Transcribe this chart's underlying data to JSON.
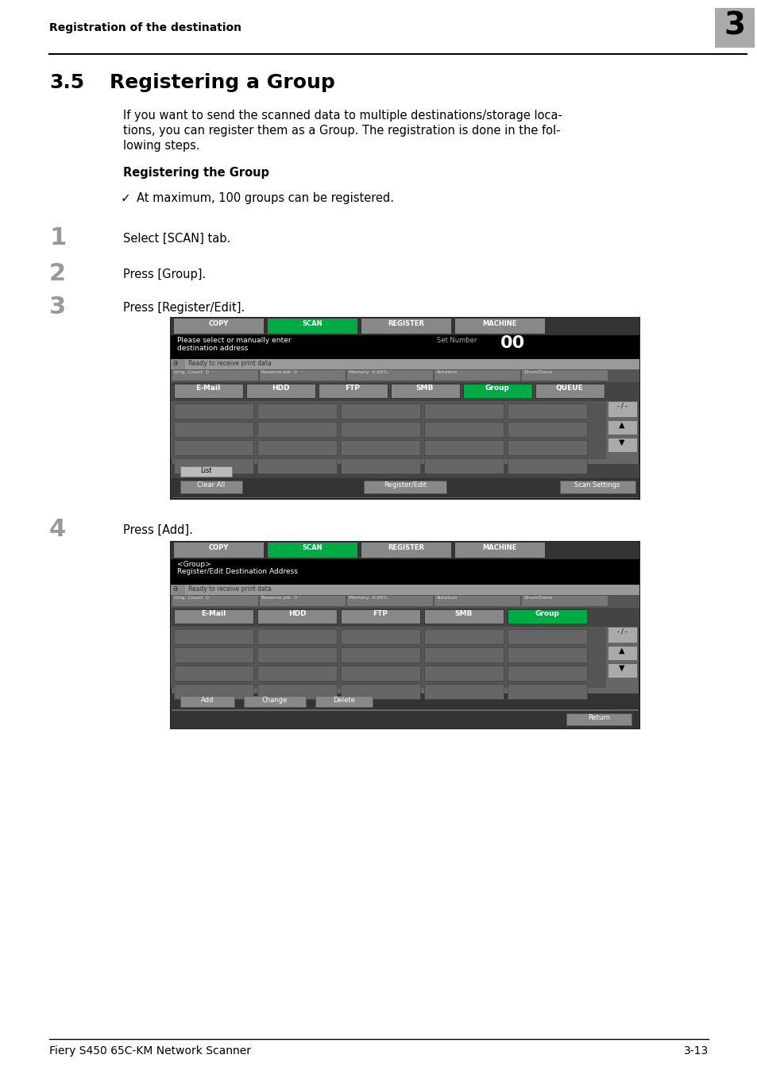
{
  "page_bg": "#ffffff",
  "header_text": "Registration of the destination",
  "header_chapter_num": "3",
  "header_chapter_bg": "#aaaaaa",
  "footer_text_left": "Fiery S450 65C-KM Network Scanner",
  "footer_text_right": "3-13",
  "section_num": "3.5",
  "section_title": "Registering a Group",
  "intro_line1": "If you want to send the scanned data to multiple destinations/storage loca-",
  "intro_line2": "tions, you can register them as a Group. The registration is done in the fol-",
  "intro_line3": "lowing steps.",
  "subheading": "Registering the Group",
  "checkmark_text": "At maximum, 100 groups can be registered.",
  "step1_num": "1",
  "step1_text": "Select [SCAN] tab.",
  "step2_num": "2",
  "step2_text": "Press [Group].",
  "step3_num": "3",
  "step3_text": "Press [Register/Edit].",
  "step4_num": "4",
  "step4_text": "Press [Add].",
  "tab_labels": [
    "COPY",
    "SCAN",
    "REGISTER",
    "MACHINE"
  ],
  "tab_colors_screen1": [
    "#888888",
    "#00aa44",
    "#888888",
    "#888888"
  ],
  "tab_colors_screen2": [
    "#888888",
    "#00aa44",
    "#888888",
    "#888888"
  ],
  "btn_labels1": [
    "E-Mail",
    "HDD",
    "FTP",
    "SMB",
    "Group",
    "QUEUE"
  ],
  "btn_colors1": [
    "#888888",
    "#888888",
    "#888888",
    "#888888",
    "#00aa44",
    "#888888"
  ],
  "btn_labels2": [
    "E-Mail",
    "HDD",
    "FTP",
    "SMB",
    "Group"
  ],
  "btn_colors2": [
    "#888888",
    "#888888",
    "#888888",
    "#888888",
    "#00aa44"
  ],
  "status_tabs": [
    "Orig. Count  0",
    "Reserve Job  0",
    "Memory  0.00%",
    "Rotation",
    "Drum/Deve"
  ]
}
